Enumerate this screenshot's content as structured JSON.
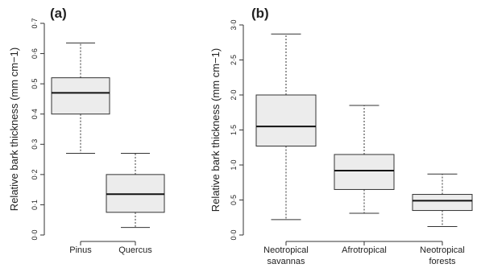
{
  "chart_data": [
    {
      "type": "box",
      "panel_label": "(a)",
      "ylabel": "Relative bark thickness (mm cm−1)",
      "ylim": [
        0,
        0.7
      ],
      "yticks": [
        "0·0",
        "0·1",
        "0·2",
        "0·3",
        "0·4",
        "0·5",
        "0·6",
        "0·7"
      ],
      "categories": [
        {
          "label": [
            "Pinus"
          ],
          "whisker_low": 0.27,
          "q1": 0.4,
          "median": 0.47,
          "q3": 0.52,
          "whisker_high": 0.635
        },
        {
          "label": [
            "Quercus"
          ],
          "whisker_low": 0.025,
          "q1": 0.075,
          "median": 0.135,
          "q3": 0.2,
          "whisker_high": 0.27
        }
      ],
      "box_fill": "#ececec"
    },
    {
      "type": "box",
      "panel_label": "(b)",
      "ylabel": "Relative bark thickness (mm cm−1)",
      "ylim": [
        0,
        3.0
      ],
      "yticks": [
        "0·0",
        "0·5",
        "1·0",
        "1·5",
        "2·0",
        "2·5",
        "3·0"
      ],
      "categories": [
        {
          "label": [
            "Neotropical",
            "savannas"
          ],
          "whisker_low": 0.22,
          "q1": 1.27,
          "median": 1.55,
          "q3": 2.0,
          "whisker_high": 2.87
        },
        {
          "label": [
            "Afrotropical"
          ],
          "whisker_low": 0.31,
          "q1": 0.65,
          "median": 0.92,
          "q3": 1.15,
          "whisker_high": 1.85
        },
        {
          "label": [
            "Neotropical",
            "forests"
          ],
          "whisker_low": 0.12,
          "q1": 0.35,
          "median": 0.49,
          "q3": 0.58,
          "whisker_high": 0.87
        }
      ],
      "box_fill": "#ececec"
    }
  ]
}
